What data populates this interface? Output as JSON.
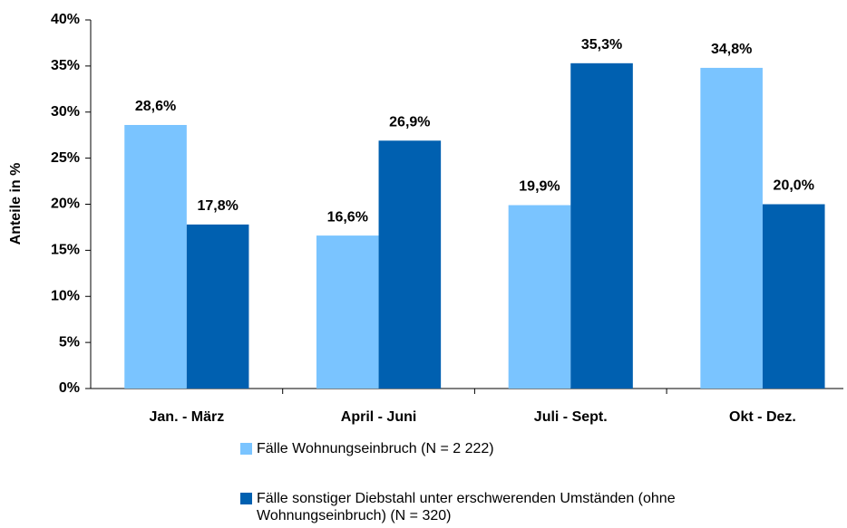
{
  "chart_data": {
    "type": "bar",
    "y_label": "Anteile in %",
    "categories": [
      "Jan. - März",
      "April - Juni",
      "Juli - Sept.",
      "Okt - Dez."
    ],
    "series": [
      {
        "name": "Fälle Wohnungseinbruch (N = 2 222)",
        "color": "#7ac4ff",
        "values": [
          28.6,
          16.6,
          19.9,
          34.8
        ],
        "value_labels": [
          "28,6%",
          "16,6%",
          "19,9%",
          "34,8%"
        ]
      },
      {
        "name": "Fälle sonstiger Diebstahl unter erschwerenden Umständen (ohne Wohnungseinbruch) (N = 320)",
        "color": "#0060b0",
        "values": [
          17.8,
          26.9,
          35.3,
          20.0
        ],
        "value_labels": [
          "17,8%",
          "26,9%",
          "35,3%",
          "20,0%"
        ]
      }
    ],
    "ylim": [
      0,
      40
    ],
    "yticks": [
      {
        "value": 0,
        "label": "0%"
      },
      {
        "value": 5,
        "label": "5%"
      },
      {
        "value": 10,
        "label": "10%"
      },
      {
        "value": 15,
        "label": "15%"
      },
      {
        "value": 20,
        "label": "20%"
      },
      {
        "value": 25,
        "label": "25%"
      },
      {
        "value": 30,
        "label": "30%"
      },
      {
        "value": 35,
        "label": "35%"
      },
      {
        "value": 40,
        "label": "40%"
      }
    ],
    "grid": false
  }
}
